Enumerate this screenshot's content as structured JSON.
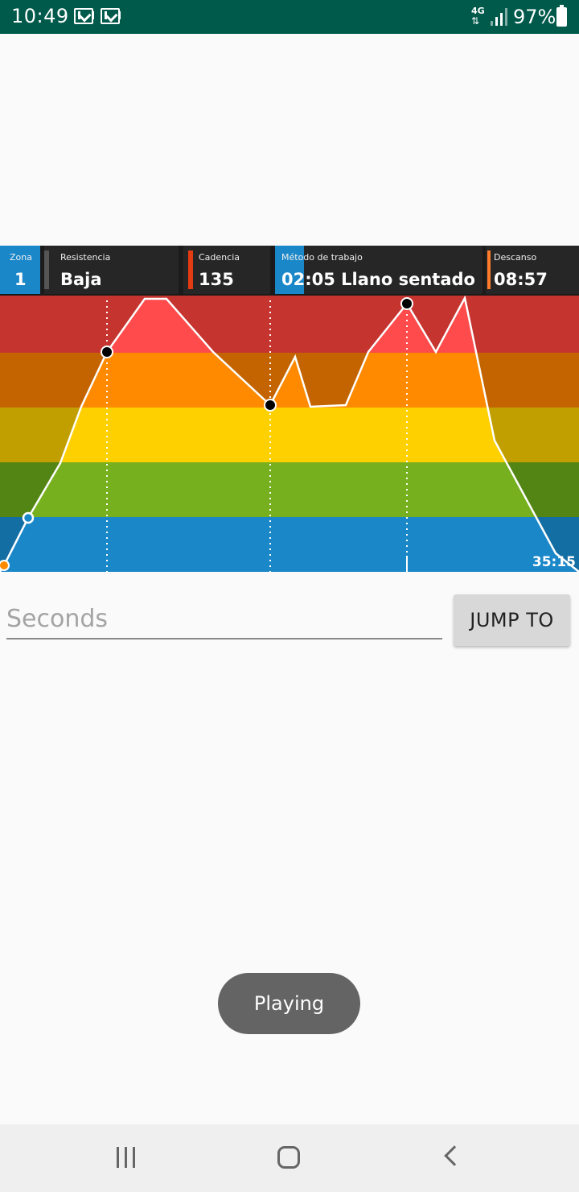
{
  "status_bar": {
    "time": "10:49",
    "notification_icons": [
      "gmail-icon",
      "gmail-icon"
    ],
    "network": "4G",
    "battery": "97%"
  },
  "video": {
    "hud": {
      "zona": {
        "label": "Zona",
        "value": "1"
      },
      "resistencia": {
        "label": "Resistencia",
        "value": "Baja"
      },
      "cadencia": {
        "label": "Cadencia",
        "value": "135"
      },
      "metodo": {
        "label": "Método de trabajo",
        "value": "02:05 Llano sentado"
      },
      "descanso": {
        "label": "Descanso",
        "value": "08:57"
      }
    },
    "time_code": "35:15",
    "colors": {
      "zone1": "#1a87c9",
      "zone2": "#76b01f",
      "zone3": "#ffd000",
      "zone4": "#ff8a00",
      "zone5": "#ff4b4b",
      "cadencia_accent": "#e33b12",
      "descanso_accent": "#ff7d2a"
    }
  },
  "controls": {
    "seconds_placeholder": "Seconds",
    "seconds_value": "",
    "jump_label": "JUMP TO"
  },
  "toast": {
    "text": "Playing"
  },
  "nav": {
    "icons": [
      "recent-apps-icon",
      "home-icon",
      "back-icon"
    ]
  }
}
